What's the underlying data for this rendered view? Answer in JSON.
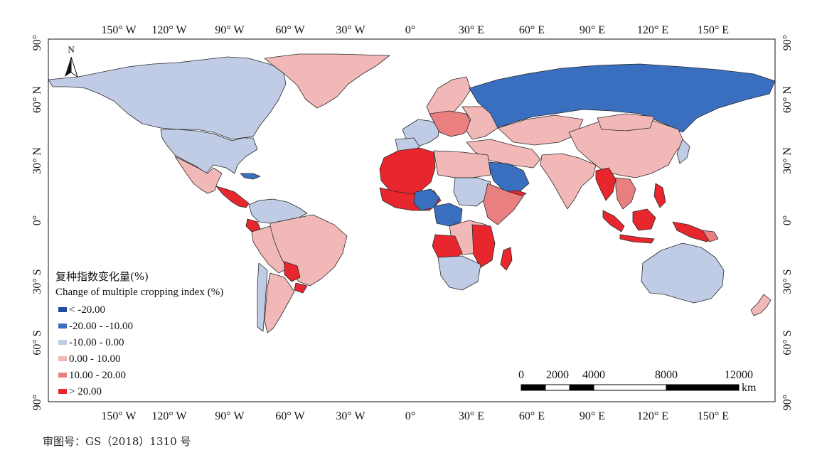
{
  "map": {
    "lon_labels": [
      "150° W",
      "120° W",
      "90° W",
      "60° W",
      "30° W",
      "0°",
      "30° E",
      "60° E",
      "90° E",
      "120° E",
      "150° E"
    ],
    "lat_labels": [
      "90°",
      "60° N",
      "30° N",
      "0°",
      "30° S",
      "60° S",
      "90°"
    ],
    "north_arrow": "N"
  },
  "legend": {
    "title_cn": "复种指数变化量(%)",
    "title_en": "Change of multiple cropping index (%)",
    "classes": [
      {
        "label": "< -20.00",
        "color": "#1f4e9c"
      },
      {
        "label": "-20.00 - -10.00",
        "color": "#3a6fc0"
      },
      {
        "label": "-10.00 - 0.00",
        "color": "#c0cce6"
      },
      {
        "label": "0.00 - 10.00",
        "color": "#f2b8b8"
      },
      {
        "label": "10.00 - 20.00",
        "color": "#ea7f80"
      },
      {
        "label": "> 20.00",
        "color": "#e8262d"
      }
    ]
  },
  "scale_bar": {
    "ticks": [
      "0",
      "2000",
      "4000",
      "8000",
      "12000"
    ],
    "unit": "km"
  },
  "footer": {
    "approval_number": "审图号：GS（2018）1310 号"
  }
}
